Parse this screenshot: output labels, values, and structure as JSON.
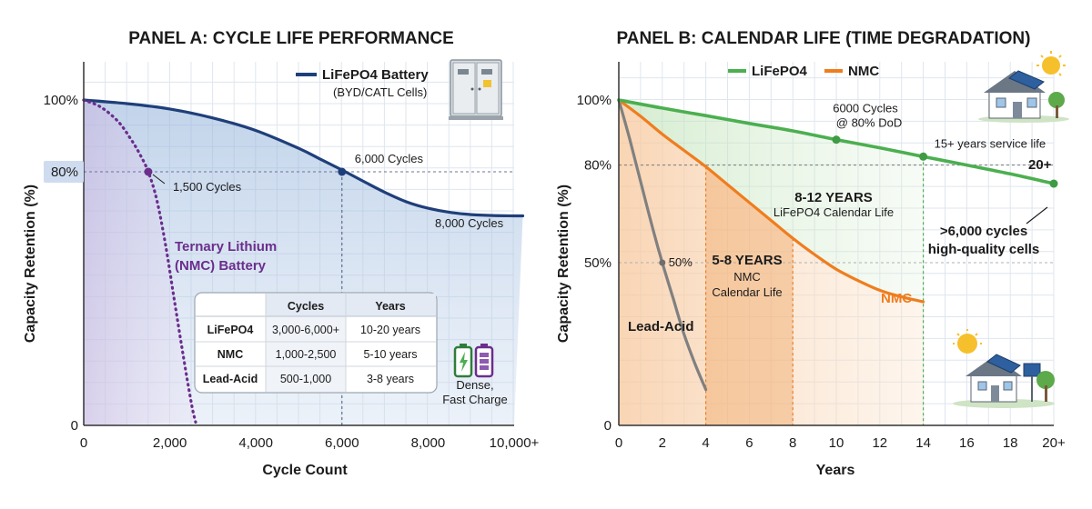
{
  "colors": {
    "lifepo4_a": "#1f3f7a",
    "nmc_a": "#6a2e8c",
    "lifepo4_b": "#4caf50",
    "nmc_b": "#ef7d1e",
    "leadacid": "#808080",
    "grid": "#dfe6ee"
  },
  "icons": {
    "panel_a": "battery-cabinet-icon",
    "panel_a_battery": "battery-pack-icon",
    "panel_b_top": "solar-house-icon",
    "panel_b_bottom": "solar-house-icon"
  },
  "chart_data": [
    {
      "type": "line",
      "title": "PANEL A: CYCLE LIFE PERFORMANCE",
      "xlabel": "Cycle Count",
      "ylabel": "Capacity Retention (%)",
      "xlim": [
        0,
        10000
      ],
      "ylim": [
        0,
        100
      ],
      "x_ticks": [
        0,
        2000,
        4000,
        6000,
        8000,
        10000
      ],
      "x_tick_labels": [
        "0",
        "2,000",
        "4,000",
        "6,000",
        "8,000",
        "10,000+"
      ],
      "y_ticks": [
        0,
        80,
        100
      ],
      "y_tick_labels": [
        "0",
        "80%",
        "100%"
      ],
      "grid": true,
      "legend": {
        "position": "top-right",
        "entries": [
          {
            "label": "LiFePO4 Battery",
            "sub": "(BYD/CATL Cells)"
          }
        ]
      },
      "series": [
        {
          "name": "LiFePO4 Battery",
          "style": "solid",
          "x": [
            0,
            1000,
            2000,
            3000,
            4000,
            5000,
            5500,
            6000,
            6500,
            7000,
            7500,
            8000,
            8500,
            9000,
            9500,
            10000,
            10200
          ],
          "y": [
            100,
            99,
            97.5,
            95,
            91.5,
            86.5,
            83.5,
            80.5,
            77,
            73.5,
            70.5,
            68.5,
            67.2,
            66.5,
            66.2,
            66.1,
            66.1
          ]
        },
        {
          "name": "Ternary Lithium (NMC) Battery",
          "style": "dotted",
          "x": [
            0,
            400,
            800,
            1100,
            1300,
            1500,
            1700,
            1900,
            2100,
            2300,
            2500,
            2600
          ],
          "y": [
            100,
            98,
            94,
            89,
            85,
            80,
            71,
            57,
            40,
            23,
            7,
            1
          ]
        }
      ],
      "points": [
        {
          "series": "Ternary Lithium (NMC) Battery",
          "x": 1500,
          "y": 80,
          "label": "1,500 Cycles"
        },
        {
          "series": "LiFePO4 Battery",
          "x": 6000,
          "y": 80,
          "label": "6,000 Cycles"
        }
      ],
      "annotations": {
        "lifepo4_end": "8,000 Cycles",
        "nmc_label_1": "Ternary Lithium",
        "nmc_label_2": "(NMC) Battery",
        "battery_1": "Dense,",
        "battery_2": "Fast Charge"
      },
      "table": {
        "headers": [
          "",
          "Cycles",
          "Years"
        ],
        "rows": [
          [
            "LiFePO4",
            "3,000-6,000+",
            "10-20 years"
          ],
          [
            "NMC",
            "1,000-2,500",
            "5-10 years"
          ],
          [
            "Lead-Acid",
            "500-1,000",
            "3-8 years"
          ]
        ]
      }
    },
    {
      "type": "line",
      "title": "PANEL B: CALENDAR LIFE (TIME DEGRADATION)",
      "xlabel": "Years",
      "ylabel": "Capacity Retention (%)",
      "xlim": [
        0,
        20
      ],
      "ylim": [
        0,
        100
      ],
      "x_ticks": [
        0,
        2,
        4,
        6,
        8,
        10,
        12,
        14,
        16,
        18,
        20
      ],
      "x_tick_labels": [
        "0",
        "2",
        "4",
        "6",
        "8",
        "10",
        "12",
        "14",
        "16",
        "18",
        "20+"
      ],
      "y_ticks": [
        0,
        50,
        80,
        100
      ],
      "y_tick_labels": [
        "0",
        "50%",
        "80%",
        "100%"
      ],
      "grid": true,
      "legend": {
        "position": "top-left",
        "entries": [
          {
            "label": "LiFePO4"
          },
          {
            "label": "NMC"
          }
        ]
      },
      "series": [
        {
          "name": "LiFePO4",
          "x": [
            0,
            2,
            4,
            6,
            8,
            10,
            12,
            14,
            16,
            18,
            20
          ],
          "y": [
            100,
            97.5,
            95.2,
            92.8,
            90.5,
            87.8,
            85.3,
            82.6,
            80,
            77.3,
            74.3
          ]
        },
        {
          "name": "NMC",
          "x": [
            0,
            1,
            2,
            3,
            4,
            5,
            6,
            7,
            8,
            9,
            10,
            11,
            12,
            13,
            14
          ],
          "y": [
            100,
            95,
            89.5,
            84.5,
            79.5,
            74,
            68.5,
            63,
            57.5,
            52.5,
            48,
            44.5,
            41.5,
            39.5,
            38
          ]
        },
        {
          "name": "Lead-Acid",
          "x": [
            0,
            0.5,
            1,
            1.5,
            2,
            2.5,
            3,
            3.5,
            4
          ],
          "y": [
            100,
            88,
            75,
            62,
            50,
            39,
            28,
            19,
            11
          ]
        }
      ],
      "points": [
        {
          "series": "LiFePO4",
          "x": 10,
          "y": 87.8,
          "label": "6000 Cycles",
          "label2": "@ 80% DoD"
        },
        {
          "series": "LiFePO4",
          "x": 14,
          "y": 82.6,
          "label": "15+ years service life"
        },
        {
          "series": "LiFePO4",
          "x": 20,
          "y": 74.3,
          "label": "20+"
        },
        {
          "series": "Lead-Acid",
          "x": 2,
          "y": 50,
          "label": "50%"
        }
      ],
      "regions": [
        {
          "x0": 4,
          "x1": 8,
          "title": "5-8 YEARS",
          "sub1": "NMC",
          "sub2": "Calendar Life"
        },
        {
          "x0": 4,
          "x1": 14,
          "title": "8-12 YEARS",
          "sub1": "LiFePO4 Calendar Life"
        }
      ],
      "annotations": {
        "lead_acid": "Lead-Acid",
        "nmc": "NMC",
        "cycles_1": ">6,000 cycles",
        "cycles_2": "high-quality cells"
      }
    }
  ]
}
